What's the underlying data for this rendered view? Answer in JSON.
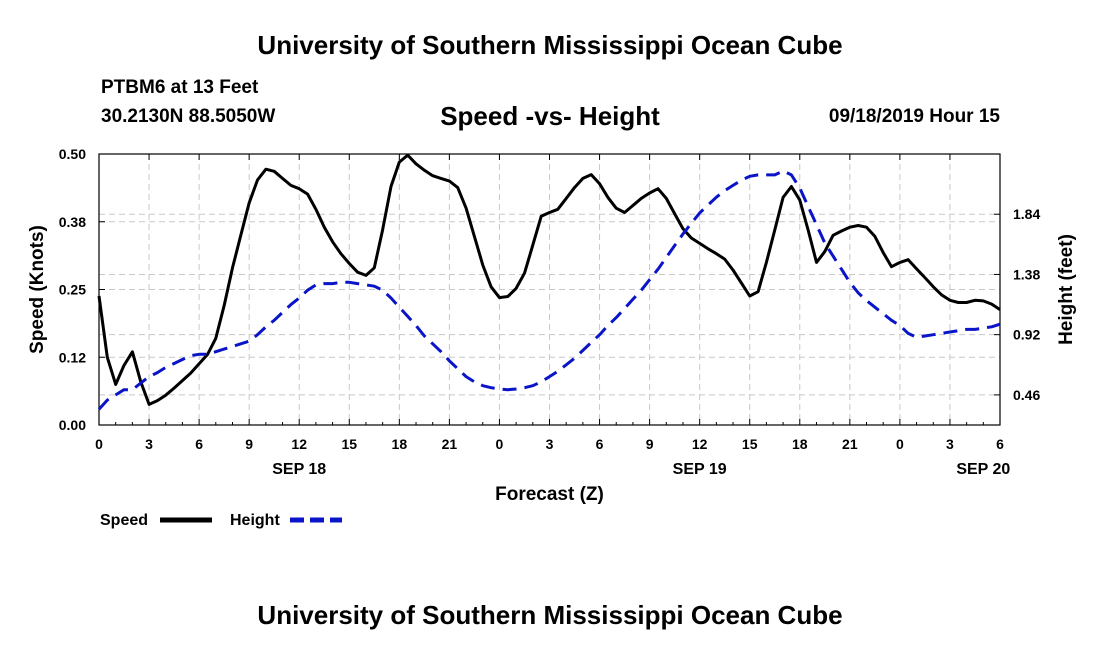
{
  "header": {
    "title": "University of Southern Mississippi Ocean Cube",
    "station": "PTBM6 at 13 Feet",
    "coords": "30.2130N 88.5050W",
    "subtitle": "Speed -vs- Height",
    "datetime": "09/18/2019 Hour 15"
  },
  "footer": {
    "title": "University of Southern Mississippi Ocean Cube"
  },
  "colors": {
    "speed": "#000000",
    "height": "#0a14c8",
    "grid": "#c8c8c8"
  },
  "chart_data": {
    "type": "line",
    "title": "Speed -vs- Height",
    "xlabel": "Forecast (Z)",
    "ylabel": "Speed (Knots)",
    "y2label": "Height (feet)",
    "x_unit": "hours since 09/18 00Z",
    "xlim": [
      0,
      54
    ],
    "ylim": [
      0,
      0.5
    ],
    "y2lim": [
      0.23,
      2.3
    ],
    "grid": true,
    "x_ticks": [
      0,
      3,
      6,
      9,
      12,
      15,
      18,
      21,
      24,
      27,
      30,
      33,
      36,
      39,
      42,
      45,
      48,
      51,
      54
    ],
    "x_tick_labels": [
      "0",
      "3",
      "6",
      "9",
      "12",
      "15",
      "18",
      "21",
      "0",
      "3",
      "6",
      "9",
      "12",
      "15",
      "18",
      "21",
      "0",
      "3",
      "6"
    ],
    "date_labels": [
      {
        "x": 12,
        "label": "SEP 18"
      },
      {
        "x": 36,
        "label": "SEP 19"
      },
      {
        "x": 53,
        "label": "SEP 20"
      }
    ],
    "y_ticks": [
      0.0,
      0.125,
      0.25,
      0.375,
      0.5
    ],
    "y_tick_labels": [
      "0.00",
      "0.12",
      "0.25",
      "0.38",
      "0.50"
    ],
    "y2_ticks": [
      0.46,
      0.92,
      1.38,
      1.84
    ],
    "y2_tick_labels": [
      "0.46",
      "0.92",
      "1.38",
      "1.84"
    ],
    "legend": [
      {
        "name": "Speed",
        "style": "solid"
      },
      {
        "name": "Height",
        "style": "dashed"
      }
    ],
    "series": [
      {
        "name": "Speed",
        "axis": "left",
        "style": "solid",
        "x": [
          0,
          0.5,
          1,
          1.5,
          2,
          2.5,
          3,
          3.5,
          4,
          4.5,
          5,
          5.5,
          6,
          6.5,
          7,
          7.5,
          8,
          8.5,
          9,
          9.5,
          10,
          10.5,
          11,
          11.5,
          12,
          12.5,
          13,
          13.5,
          14,
          14.5,
          15,
          15.5,
          16,
          16.5,
          17,
          17.5,
          18,
          18.5,
          19,
          19.5,
          20,
          20.5,
          21,
          21.5,
          22,
          22.5,
          23,
          23.5,
          24,
          24.5,
          25,
          25.5,
          26,
          26.5,
          27,
          27.5,
          28,
          28.5,
          29,
          29.5,
          30,
          30.5,
          31,
          31.5,
          32,
          32.5,
          33,
          33.5,
          34,
          34.5,
          35,
          35.5,
          36,
          36.5,
          37,
          37.5,
          38,
          38.5,
          39,
          39.5,
          40,
          40.5,
          41,
          41.5,
          42,
          42.5,
          43,
          43.5,
          44,
          44.5,
          45,
          45.5,
          46,
          46.5,
          47,
          47.5,
          48,
          48.5,
          49,
          49.5,
          50,
          50.5,
          51,
          51.5,
          52,
          52.5,
          53,
          53.5,
          54
        ],
        "values": [
          0.238,
          0.125,
          0.075,
          0.11,
          0.135,
          0.08,
          0.038,
          0.045,
          0.055,
          0.068,
          0.082,
          0.096,
          0.113,
          0.13,
          0.16,
          0.22,
          0.29,
          0.35,
          0.41,
          0.452,
          0.472,
          0.468,
          0.455,
          0.442,
          0.436,
          0.426,
          0.398,
          0.365,
          0.338,
          0.316,
          0.298,
          0.282,
          0.276,
          0.29,
          0.36,
          0.44,
          0.485,
          0.498,
          0.482,
          0.47,
          0.46,
          0.455,
          0.45,
          0.438,
          0.4,
          0.348,
          0.295,
          0.255,
          0.235,
          0.237,
          0.252,
          0.28,
          0.332,
          0.385,
          0.392,
          0.398,
          0.418,
          0.438,
          0.455,
          0.462,
          0.445,
          0.42,
          0.4,
          0.392,
          0.405,
          0.418,
          0.428,
          0.436,
          0.418,
          0.39,
          0.362,
          0.345,
          0.335,
          0.325,
          0.316,
          0.306,
          0.286,
          0.262,
          0.238,
          0.246,
          0.3,
          0.36,
          0.42,
          0.44,
          0.415,
          0.36,
          0.3,
          0.32,
          0.35,
          0.358,
          0.365,
          0.368,
          0.365,
          0.348,
          0.318,
          0.292,
          0.3,
          0.305,
          0.288,
          0.272,
          0.255,
          0.24,
          0.23,
          0.226,
          0.226,
          0.23,
          0.229,
          0.223,
          0.213
        ]
      },
      {
        "name": "Height",
        "axis": "right",
        "style": "dashed",
        "x": [
          0,
          0.5,
          1,
          1.5,
          2,
          2.5,
          3,
          3.5,
          4,
          4.5,
          5,
          5.5,
          6,
          6.5,
          7,
          7.5,
          8,
          8.5,
          9,
          9.5,
          10,
          10.5,
          11,
          11.5,
          12,
          12.5,
          13,
          13.5,
          14,
          14.5,
          15,
          15.5,
          16,
          16.5,
          17,
          17.5,
          18,
          18.5,
          19,
          19.5,
          20,
          20.5,
          21,
          21.5,
          22,
          22.5,
          23,
          23.5,
          24,
          24.5,
          25,
          25.5,
          26,
          26.5,
          27,
          27.5,
          28,
          28.5,
          29,
          29.5,
          30,
          30.5,
          31,
          31.5,
          32,
          32.5,
          33,
          33.5,
          34,
          34.5,
          35,
          35.5,
          36,
          36.5,
          37,
          37.5,
          38,
          38.5,
          39,
          39.5,
          40,
          40.5,
          41,
          41.5,
          42,
          42.5,
          43,
          43.5,
          44,
          44.5,
          45,
          45.5,
          46,
          46.5,
          47,
          47.5,
          48,
          48.5,
          49,
          49.5,
          50,
          50.5,
          51,
          51.5,
          52,
          52.5,
          53,
          53.5,
          54
        ],
        "values": [
          0.35,
          0.42,
          0.46,
          0.5,
          0.5,
          0.55,
          0.6,
          0.63,
          0.67,
          0.7,
          0.73,
          0.76,
          0.77,
          0.77,
          0.79,
          0.81,
          0.83,
          0.85,
          0.87,
          0.92,
          0.98,
          1.03,
          1.09,
          1.15,
          1.2,
          1.26,
          1.3,
          1.31,
          1.31,
          1.32,
          1.32,
          1.31,
          1.3,
          1.29,
          1.26,
          1.2,
          1.13,
          1.06,
          0.99,
          0.91,
          0.85,
          0.79,
          0.72,
          0.66,
          0.6,
          0.56,
          0.53,
          0.515,
          0.505,
          0.5,
          0.505,
          0.515,
          0.53,
          0.56,
          0.6,
          0.64,
          0.69,
          0.74,
          0.8,
          0.86,
          0.92,
          0.99,
          1.05,
          1.12,
          1.19,
          1.26,
          1.34,
          1.42,
          1.51,
          1.6,
          1.69,
          1.77,
          1.85,
          1.91,
          1.97,
          2.02,
          2.06,
          2.1,
          2.13,
          2.14,
          2.14,
          2.14,
          2.17,
          2.14,
          2.04,
          1.9,
          1.76,
          1.62,
          1.52,
          1.42,
          1.32,
          1.24,
          1.18,
          1.13,
          1.08,
          1.03,
          0.99,
          0.93,
          0.9,
          0.91,
          0.92,
          0.93,
          0.94,
          0.95,
          0.96,
          0.96,
          0.97,
          0.98,
          1.0
        ]
      }
    ]
  }
}
